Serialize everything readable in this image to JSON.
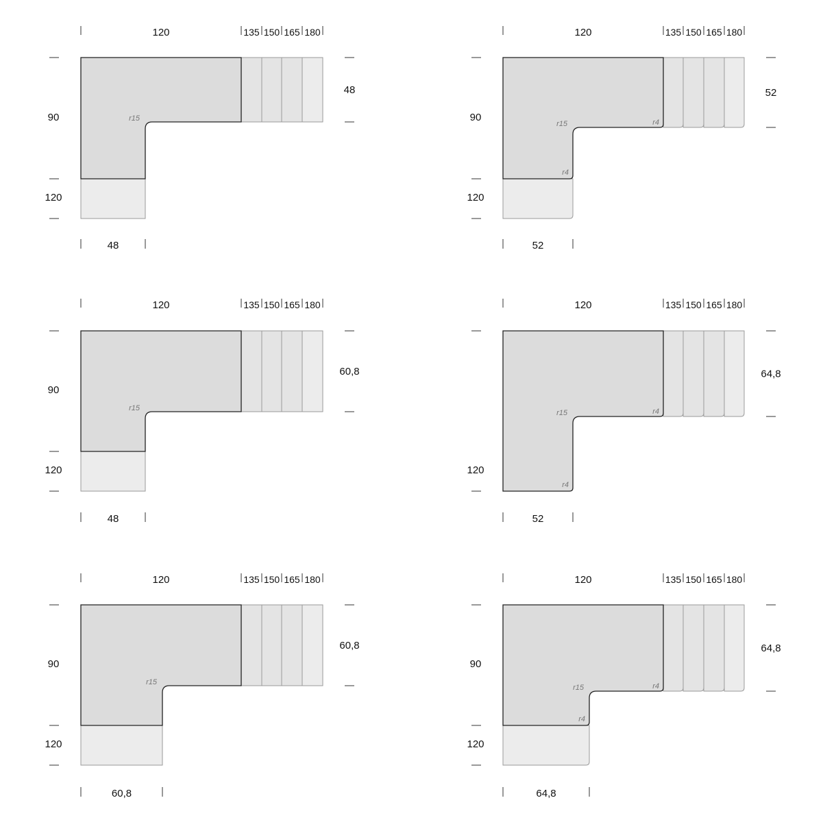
{
  "colors": {
    "main_fill": "#dcdcdc",
    "extension_fill": "#e4e4e4",
    "last_extension_fill": "#ececec",
    "light_fill": "#ececec",
    "outline_dark": "#222222",
    "outline_light": "#9a9a9a",
    "radius_text": "#777777"
  },
  "diagrams": [
    {
      "id": "d1",
      "corner": "square",
      "top_main": "120",
      "top_ext": [
        "135",
        "150",
        "165",
        "180"
      ],
      "left_upper": "90",
      "left_lower": "120",
      "right_label": "48",
      "bottom_label": "48",
      "radius_inner": "r15",
      "radius_small_upper": "",
      "radius_small_lower": "",
      "lower_block_is_main": false
    },
    {
      "id": "d2",
      "corner": "rounded",
      "top_main": "120",
      "top_ext": [
        "135",
        "150",
        "165",
        "180"
      ],
      "left_upper": "90",
      "left_lower": "120",
      "right_label": "52",
      "bottom_label": "52",
      "radius_inner": "r15",
      "radius_small_upper": "r4",
      "radius_small_lower": "r4",
      "lower_block_is_main": false
    },
    {
      "id": "d3",
      "corner": "square",
      "top_main": "120",
      "top_ext": [
        "135",
        "150",
        "165",
        "180"
      ],
      "left_upper": "90",
      "left_lower": "120",
      "right_label": "60,8",
      "bottom_label": "48",
      "radius_inner": "r15",
      "radius_small_upper": "",
      "radius_small_lower": "",
      "lower_block_is_main": false
    },
    {
      "id": "d4",
      "corner": "rounded",
      "top_main": "120",
      "top_ext": [
        "135",
        "150",
        "165",
        "180"
      ],
      "left_upper": "",
      "left_lower": "120",
      "right_label": "64,8",
      "bottom_label": "52",
      "radius_inner": "r15",
      "radius_small_upper": "r4",
      "radius_small_lower": "r4",
      "lower_block_is_main": true
    },
    {
      "id": "d5",
      "corner": "square",
      "top_main": "120",
      "top_ext": [
        "135",
        "150",
        "165",
        "180"
      ],
      "left_upper": "90",
      "left_lower": "120",
      "right_label": "60,8",
      "bottom_label": "60,8",
      "radius_inner": "r15",
      "radius_small_upper": "",
      "radius_small_lower": "",
      "lower_block_is_main": false
    },
    {
      "id": "d6",
      "corner": "rounded",
      "top_main": "120",
      "top_ext": [
        "135",
        "150",
        "165",
        "180"
      ],
      "left_upper": "90",
      "left_lower": "120",
      "right_label": "64,8",
      "bottom_label": "64,8",
      "radius_inner": "r15",
      "radius_small_upper": "r4",
      "radius_small_lower": "r4",
      "lower_block_is_main": false
    }
  ]
}
